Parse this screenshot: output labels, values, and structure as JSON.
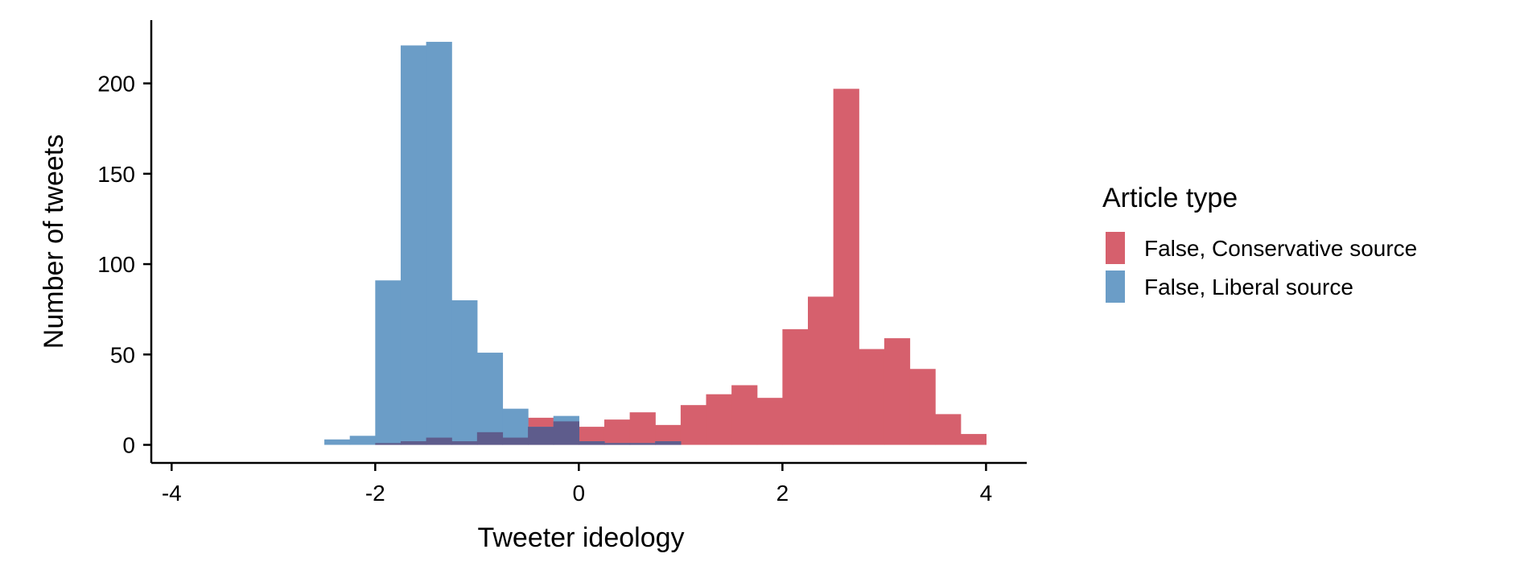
{
  "chart_data": {
    "type": "bar",
    "subtype": "overlapping histogram",
    "xlabel": "Tweeter ideology",
    "ylabel": "Number of tweets",
    "xlim": [
      -4.2,
      4.4
    ],
    "ylim": [
      -10,
      235
    ],
    "xticks": [
      "-4",
      "-2",
      "0",
      "2",
      "4"
    ],
    "yticks": [
      "0",
      "50",
      "100",
      "150",
      "200"
    ],
    "bin_width": 0.25,
    "grid": false,
    "legend": {
      "title": "Article type",
      "position": "right"
    },
    "series": [
      {
        "name": "False, Conservative source",
        "color": "#d6606d",
        "bins": [
          [
            -2.0,
            1
          ],
          [
            -1.75,
            2
          ],
          [
            -1.5,
            4
          ],
          [
            -1.25,
            2
          ],
          [
            -1.0,
            7
          ],
          [
            -0.75,
            4
          ],
          [
            -0.5,
            15
          ],
          [
            -0.25,
            13
          ],
          [
            0.0,
            10
          ],
          [
            0.25,
            14
          ],
          [
            0.5,
            18
          ],
          [
            0.75,
            11
          ],
          [
            1.0,
            22
          ],
          [
            1.25,
            28
          ],
          [
            1.5,
            33
          ],
          [
            1.75,
            26
          ],
          [
            2.0,
            64
          ],
          [
            2.25,
            82
          ],
          [
            2.5,
            197
          ],
          [
            2.75,
            53
          ],
          [
            3.0,
            59
          ],
          [
            3.25,
            42
          ],
          [
            3.5,
            17
          ],
          [
            3.75,
            6
          ]
        ]
      },
      {
        "name": "False, Liberal source",
        "color": "#6b9dc7",
        "bins": [
          [
            -2.5,
            3
          ],
          [
            -2.25,
            5
          ],
          [
            -2.0,
            91
          ],
          [
            -1.75,
            221
          ],
          [
            -1.5,
            223
          ],
          [
            -1.25,
            80
          ],
          [
            -1.0,
            51
          ],
          [
            -0.75,
            20
          ],
          [
            -0.5,
            10
          ],
          [
            -0.25,
            16
          ],
          [
            0.0,
            2
          ],
          [
            0.25,
            1
          ],
          [
            0.5,
            1
          ],
          [
            0.75,
            2
          ]
        ]
      }
    ]
  }
}
